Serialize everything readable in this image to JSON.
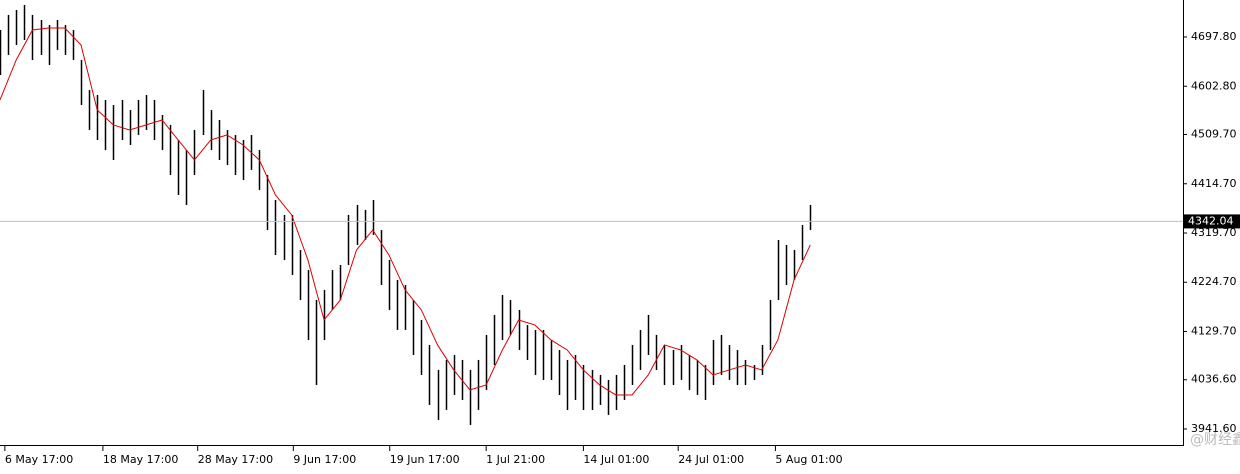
{
  "chart_data": {
    "type": "ohlc",
    "color": "#000000",
    "xlim": [
      0,
      146
    ],
    "ylim": [
      3910.7,
      4769.2
    ],
    "yticks": [
      {
        "value": 3941.6,
        "label": "3941.60"
      },
      {
        "value": 4036.6,
        "label": "4036.60"
      },
      {
        "value": 4129.7,
        "label": "4129.70"
      },
      {
        "value": 4224.7,
        "label": "4224.70"
      },
      {
        "value": 4319.7,
        "label": "4319.70"
      },
      {
        "value": 4414.7,
        "label": "4414.70"
      },
      {
        "value": 4509.7,
        "label": "4509.70"
      },
      {
        "value": 4602.8,
        "label": "4602.80"
      },
      {
        "value": 4697.8,
        "label": "4697.80"
      }
    ],
    "xticks": [
      {
        "value": 0.6,
        "label": "6 May 17:00"
      },
      {
        "value": 12.7,
        "label": "18 May 17:00"
      },
      {
        "value": 24.4,
        "label": "28 May 17:00"
      },
      {
        "value": 36.2,
        "label": "9 Jun 17:00"
      },
      {
        "value": 48.1,
        "label": "19 Jun 17:00"
      },
      {
        "value": 60,
        "label": "1 Jul 21:00"
      },
      {
        "value": 72,
        "label": "14 Jul 01:00"
      },
      {
        "value": 83.7,
        "label": "24 Jul 01:00"
      },
      {
        "value": 95.7,
        "label": "5 Aug 01:00"
      }
    ],
    "last_price": 4342.04,
    "watermark": "@财经鑫",
    "high": [
      4711.3,
      4740.3,
      4749.9,
      4759.6,
      4740.3,
      4730.6,
      4721.0,
      4730.6,
      4721.0,
      4711.3,
      4653.5,
      4595.6,
      4585.9,
      4576.3,
      4566.7,
      4576.3,
      4557.0,
      4576.3,
      4585.9,
      4576.3,
      4547.4,
      4528.1,
      4499.1,
      4479.8,
      4518.4,
      4595.6,
      4557.0,
      4537.7,
      4518.4,
      4508.8,
      4499.1,
      4508.8,
      4479.8,
      4431.6,
      4383.4,
      4354.5,
      4354.5,
      4286.9,
      4248.4,
      4190.5,
      4209.8,
      4248.4,
      4258.0,
      4354.5,
      4373.8,
      4364.1,
      4383.4,
      4325.5,
      4267.7,
      4229.1,
      4219.4,
      4190.5,
      4151.9,
      4103.7,
      4055.5,
      4074.8,
      4084.4,
      4074.8,
      4055.5,
      4074.8,
      4123.0,
      4161.6,
      4200.1,
      4190.5,
      4171.2,
      4142.3,
      4132.6,
      4132.6,
      4113.3,
      4094.0,
      4074.8,
      4084.4,
      4065.1,
      4055.5,
      4045.8,
      4036.2,
      4045.8,
      4065.1,
      4103.7,
      4132.6,
      4161.6,
      4123.0,
      4103.7,
      4094.0,
      4103.7,
      4084.4,
      4074.8,
      4065.1,
      4113.3,
      4123.0,
      4103.7,
      4094.0,
      4074.8,
      4065.1,
      4103.7,
      4190.5,
      4306.2,
      4296.6,
      4286.9,
      4335.2,
      4373.8
    ],
    "low": [
      4624.5,
      4663.1,
      4682.4,
      4692.0,
      4653.5,
      4663.1,
      4643.8,
      4672.7,
      4663.1,
      4653.5,
      4566.7,
      4518.4,
      4499.1,
      4479.8,
      4460.6,
      4499.1,
      4489.5,
      4508.8,
      4518.4,
      4499.1,
      4479.8,
      4431.6,
      4393.0,
      4373.8,
      4431.6,
      4508.8,
      4479.8,
      4460.6,
      4450.9,
      4431.6,
      4422.0,
      4441.3,
      4402.7,
      4325.5,
      4277.3,
      4267.7,
      4238.7,
      4190.5,
      4113.3,
      4026.5,
      4113.3,
      4171.2,
      4190.5,
      4258.0,
      4296.6,
      4306.2,
      4315.9,
      4219.4,
      4171.2,
      4132.6,
      4132.6,
      4084.4,
      4045.8,
      3988.0,
      3959.0,
      3978.3,
      4007.2,
      3997.6,
      3949.4,
      3978.3,
      4016.9,
      4065.1,
      4113.3,
      4123.0,
      4094.0,
      4074.8,
      4045.8,
      4036.2,
      4036.2,
      4007.2,
      3978.3,
      3997.6,
      3978.3,
      3978.3,
      3988.0,
      3968.7,
      3978.3,
      3997.6,
      4026.5,
      4055.5,
      4084.4,
      4055.5,
      4026.5,
      4026.5,
      4036.2,
      4016.9,
      4007.2,
      3997.6,
      4026.5,
      4045.8,
      4036.2,
      4026.5,
      4026.5,
      4036.2,
      4045.8,
      4094.0,
      4190.5,
      4219.4,
      4229.1,
      4267.7,
      4325.5
    ],
    "ma": {
      "color": "#dd0000",
      "x": [
        0,
        2,
        4,
        6,
        8,
        10,
        12,
        14,
        16,
        18,
        20,
        22,
        24,
        26,
        28,
        30,
        32,
        34,
        36,
        38,
        40,
        42,
        44,
        46,
        48,
        50,
        52,
        54,
        56,
        58,
        60,
        62,
        64,
        66,
        68,
        70,
        72,
        74,
        76,
        78,
        80,
        82,
        84,
        86,
        88,
        90,
        92,
        94,
        96,
        98,
        100
      ],
      "values": [
        4576.3,
        4653.5,
        4711.3,
        4715.2,
        4715.2,
        4682.4,
        4557.0,
        4528.1,
        4518.4,
        4528.1,
        4537.7,
        4499.1,
        4460.6,
        4499.1,
        4508.8,
        4489.5,
        4460.6,
        4393.0,
        4354.5,
        4267.7,
        4151.9,
        4190.5,
        4286.9,
        4325.5,
        4277.3,
        4209.8,
        4171.2,
        4103.7,
        4055.5,
        4016.9,
        4026.5,
        4094.0,
        4151.9,
        4142.3,
        4113.3,
        4094.0,
        4055.5,
        4026.5,
        4007.2,
        4007.2,
        4045.8,
        4103.7,
        4094.0,
        4074.8,
        4045.8,
        4055.5,
        4065.1,
        4055.5,
        4113.3,
        4229.1,
        4296.6
      ]
    }
  }
}
